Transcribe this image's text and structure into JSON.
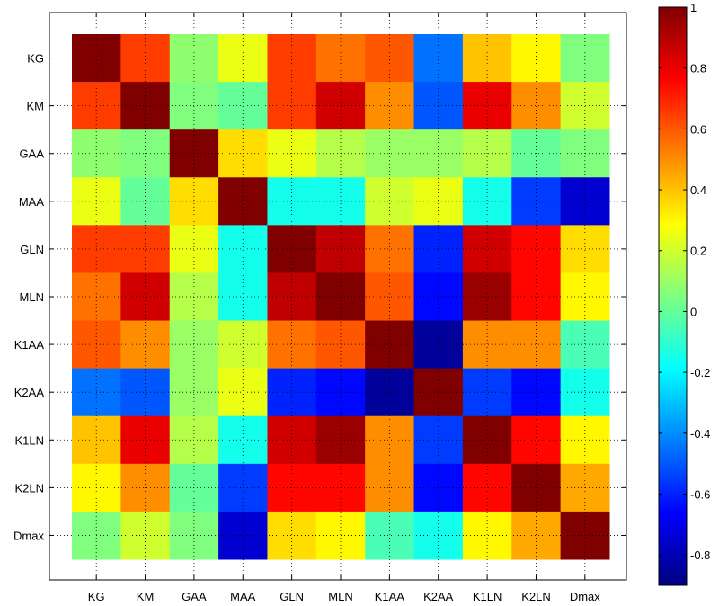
{
  "chart_data": {
    "type": "heatmap",
    "title": "",
    "xlabel": "",
    "ylabel": "",
    "categories": [
      "KG",
      "KM",
      "GAA",
      "MAA",
      "GLN",
      "MLN",
      "K1AA",
      "K2AA",
      "K1LN",
      "K2LN",
      "Dmax"
    ],
    "values": [
      [
        1.0,
        0.65,
        0.08,
        0.25,
        0.65,
        0.55,
        0.6,
        -0.45,
        0.4,
        0.3,
        0.05
      ],
      [
        0.65,
        1.0,
        0.05,
        0.0,
        0.65,
        0.85,
        0.5,
        -0.5,
        0.8,
        0.5,
        0.2
      ],
      [
        0.08,
        0.05,
        1.0,
        0.35,
        0.25,
        0.15,
        0.1,
        0.1,
        0.15,
        0.0,
        0.05
      ],
      [
        0.25,
        0.0,
        0.35,
        1.0,
        -0.15,
        -0.15,
        0.2,
        0.25,
        -0.15,
        -0.55,
        -0.75
      ],
      [
        0.65,
        0.65,
        0.25,
        -0.15,
        1.0,
        0.88,
        0.55,
        -0.6,
        0.85,
        0.75,
        0.35
      ],
      [
        0.55,
        0.85,
        0.15,
        -0.15,
        0.88,
        1.0,
        0.6,
        -0.65,
        0.95,
        0.75,
        0.3
      ],
      [
        0.6,
        0.5,
        0.1,
        0.2,
        0.55,
        0.6,
        1.0,
        -0.85,
        0.5,
        0.5,
        -0.05
      ],
      [
        -0.45,
        -0.5,
        0.1,
        0.25,
        -0.6,
        -0.65,
        -0.85,
        1.0,
        -0.55,
        -0.65,
        -0.15
      ],
      [
        0.4,
        0.8,
        0.15,
        -0.15,
        0.85,
        0.95,
        0.5,
        -0.55,
        1.0,
        0.75,
        0.3
      ],
      [
        0.3,
        0.5,
        0.0,
        -0.55,
        0.75,
        0.75,
        0.5,
        -0.65,
        0.75,
        1.0,
        0.45
      ],
      [
        0.05,
        0.2,
        0.05,
        -0.75,
        0.35,
        0.3,
        -0.05,
        -0.15,
        0.3,
        0.45,
        1.0
      ]
    ],
    "colorbar": {
      "min": -0.9,
      "max": 1.0,
      "ticks": [
        1,
        0.8,
        0.6,
        0.4,
        0.2,
        0,
        -0.2,
        -0.4,
        -0.6,
        -0.8
      ],
      "colormap": "jet"
    },
    "grid": true,
    "legend": "colorbar-right"
  }
}
